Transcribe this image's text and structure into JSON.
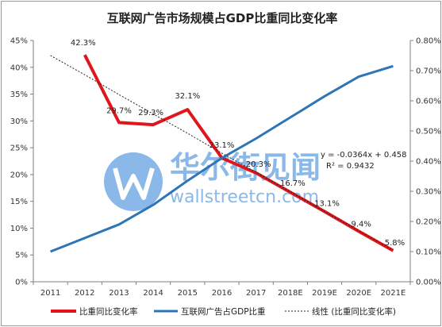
{
  "chart_data": {
    "type": "line",
    "title": "互联网广告市场规模占GDP比重同比变化率",
    "categories": [
      "2011",
      "2012",
      "2013",
      "2014",
      "2015",
      "2016",
      "2017",
      "2018E",
      "2019E",
      "2020E",
      "2021E"
    ],
    "y_left": {
      "ticks": [
        "0%",
        "5%",
        "10%",
        "15%",
        "20%",
        "25%",
        "30%",
        "35%",
        "40%",
        "45%"
      ],
      "ylim": [
        0,
        45
      ]
    },
    "y_right": {
      "ticks": [
        "0.00%",
        "0.10%",
        "0.20%",
        "0.30%",
        "0.40%",
        "0.50%",
        "0.60%",
        "0.70%",
        "0.80%"
      ],
      "ylim": [
        0,
        0.8
      ]
    },
    "series": [
      {
        "name": "比重同比变化率",
        "axis": "left",
        "color": "#e0161c",
        "values": [
          null,
          42.3,
          29.7,
          29.3,
          32.1,
          23.1,
          20.3,
          16.7,
          13.1,
          9.4,
          5.8
        ],
        "labels": [
          "",
          "42.3%",
          "29.7%",
          "29.3%",
          "32.1%",
          "23.1%",
          "20.3%",
          "16.7%",
          "13.1%",
          "9.4%",
          "5.8%"
        ]
      },
      {
        "name": "互联网广告占GDP比重",
        "axis": "right",
        "color": "#2e75b6",
        "values": [
          0.1,
          0.145,
          0.19,
          0.255,
          0.335,
          0.41,
          0.475,
          0.545,
          0.615,
          0.68,
          0.715
        ]
      },
      {
        "name": "线性 (比重同比变化率)",
        "axis": "left",
        "color": "#222222",
        "style": "dashed",
        "values": [
          42.2,
          38.6,
          34.9,
          31.3,
          27.7,
          24.0,
          20.4,
          16.8,
          13.1,
          9.5,
          5.9
        ]
      }
    ],
    "trendline_equation": "y = -0.0364x + 0.458",
    "r_squared": "R² = 0.9432",
    "legend_position": "bottom",
    "grid": false
  },
  "watermark": {
    "chinese": "华尔街见闻",
    "latin": "wallstreetcn.com",
    "color": "#2b7fd6"
  }
}
